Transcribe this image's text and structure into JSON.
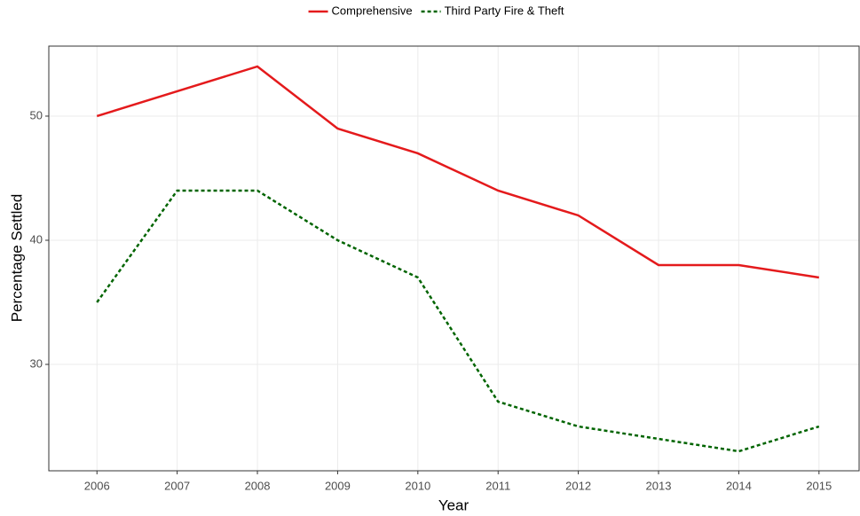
{
  "chart_data": {
    "type": "line",
    "x_label": "Year",
    "y_label": "Percentage Settled",
    "x": [
      2006,
      2007,
      2008,
      2009,
      2010,
      2011,
      2012,
      2013,
      2014,
      2015
    ],
    "series": [
      {
        "name": "Comprehensive",
        "color": "#e41a1c",
        "dash": "solid",
        "values": [
          50,
          52,
          54,
          49,
          47,
          44,
          42,
          38,
          38,
          37
        ]
      },
      {
        "name": "Third Party Fire & Theft",
        "color": "#006400",
        "dash": "dotted",
        "values": [
          35,
          44,
          44,
          40,
          37,
          27,
          25,
          24,
          23,
          25
        ]
      }
    ],
    "xlim": [
      2005.4,
      2015.5
    ],
    "xticks": [
      2006,
      2007,
      2008,
      2009,
      2010,
      2011,
      2012,
      2013,
      2014,
      2015
    ],
    "ylim": [
      21.43,
      55.64
    ],
    "yticks": [
      30,
      40,
      50
    ],
    "grid": true,
    "legend": "top"
  }
}
